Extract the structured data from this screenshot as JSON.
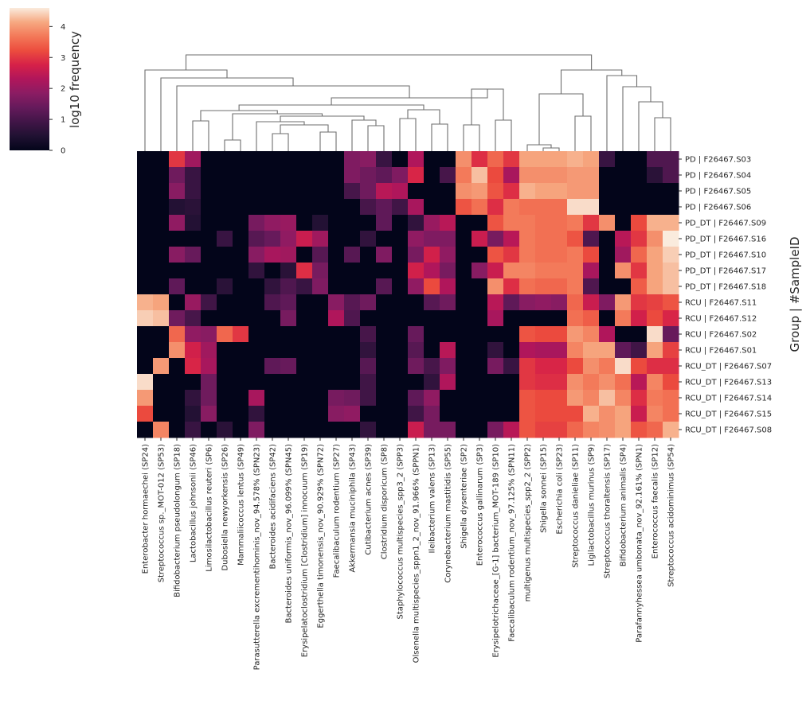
{
  "chart_data": {
    "type": "heatmap",
    "title": "",
    "xlabel": "",
    "ylabel": "Group | #SampleID",
    "colorbar": {
      "label": "log10 frequency",
      "ticks": [
        "0",
        "1",
        "2",
        "3",
        "4"
      ],
      "range": [
        0,
        4.6
      ],
      "colormap": "rocket"
    },
    "dendrogram": "columns (top)",
    "rows": [
      "PD | F26467.S03",
      "PD | F26467.S04",
      "PD | F26467.S05",
      "PD | F26467.S06",
      "PD_DT | F26467.S09",
      "PD_DT | F26467.S16",
      "PD_DT | F26467.S10",
      "PD_DT | F26467.S17",
      "PD_DT | F26467.S18",
      "RCU | F26467.S11",
      "RCU | F26467.S12",
      "RCU | F26467.S02",
      "RCU | F26467.S01",
      "RCU_DT | F26467.S07",
      "RCU_DT | F26467.S13",
      "RCU_DT | F26467.S14",
      "RCU_DT | F26467.S15",
      "RCU_DT | F26467.S08"
    ],
    "columns": [
      "Enterobacter hormaechei (SP24)",
      "Streptococcus sp._MOT-012 (SP53)",
      "Bifidobacterium pseudolongum (SP18)",
      "Lactobacillus johnsonii (SP46)",
      "Limosilactobacillus reuteri (SP6)",
      "Dubosiella newyorkensis (SP26)",
      "Mammaliicoccus lentus (SP49)",
      "Parasutterella excrementihominis_nov_94.578% (SPN23)",
      "Bacteroides acidifaciens (SP42)",
      "Bacteroides uniformis_nov_96.099% (SPN45)",
      "Erysipelatoclostridium [Clostridium] innocuum (SP19)",
      "Eggerthella timonensis_nov_90.929% (SPN72)",
      "Faecalibaculum rodentium (SP27)",
      "Akkermansia muciniphila (SP43)",
      "Cutibacterium acnes (SP39)",
      "Clostridium disporicum (SP8)",
      "Staphylococcus multispecies_spp3_2 (SPP3)",
      "Olsenella multispecies_sppn1_2_nov_91.966% (SPPN1)",
      "Ileibacterium valens (SP13)",
      "Corynebacterium mastitidis (SP55)",
      "Shigella dysenteriae (SP2)",
      "Enterococcus gallinarum (SP3)",
      "Erysipelotrichaceae_[G-1] bacterium_MOT-189 (SP10)",
      "Faecalibaculum rodentium_nov_97.125% (SPN11)",
      "multigenus multispecies_spp2_2 (SPP2)",
      "Shigella sonnei (SP15)",
      "Escherichia coli (SP23)",
      "Streptococcus danieliae (SP11)",
      "Ligilactobacillus murinus (SP9)",
      "Streptococcus thoraltensis (SP17)",
      "Bifidobacterium animalis (SP4)",
      "Parafannyhessea umbonata_nov_92.161% (SPN1)",
      "Enterococcus faecalis (SP12)",
      "Streptococcus acidominimus (SP54)"
    ],
    "values": [
      [
        0,
        0,
        3.0,
        2.1,
        0,
        0,
        0,
        0,
        0,
        0,
        0,
        0,
        0,
        1.7,
        1.8,
        0.8,
        0,
        2.3,
        0,
        0,
        3.9,
        2.9,
        3.5,
        3.0,
        4.1,
        4.1,
        4.1,
        4.2,
        4.1,
        0.8,
        0,
        0,
        1.1,
        1.1
      ],
      [
        0,
        0,
        1.5,
        0.8,
        0,
        0,
        0,
        0,
        0,
        0,
        0,
        0,
        0,
        1.7,
        1.5,
        1.3,
        1.7,
        2.8,
        0,
        1.0,
        3.7,
        4.3,
        3.2,
        2.2,
        3.9,
        3.9,
        3.9,
        4.0,
        4.0,
        0,
        0,
        0,
        0.6,
        1.1
      ],
      [
        0,
        0,
        1.8,
        0.8,
        0,
        0,
        0,
        0,
        0,
        0,
        0,
        0,
        0,
        1.0,
        1.5,
        2.4,
        2.3,
        0,
        0,
        0,
        3.9,
        4.0,
        3.3,
        2.9,
        4.2,
        4.1,
        4.1,
        4.0,
        4.0,
        0,
        0,
        0,
        0,
        0
      ],
      [
        0,
        0,
        0.5,
        0.6,
        0,
        0,
        0,
        0,
        0,
        0,
        0,
        0,
        0,
        0,
        1.0,
        1.3,
        0.9,
        2.2,
        0,
        0,
        3.3,
        3.6,
        2.9,
        3.7,
        3.6,
        3.6,
        3.6,
        4.5,
        4.5,
        0,
        0,
        0,
        0,
        0
      ],
      [
        0,
        0,
        1.9,
        0.5,
        0,
        0,
        0,
        1.6,
        1.9,
        2.0,
        0,
        0.5,
        0,
        0,
        0,
        1.3,
        0,
        0.7,
        2.0,
        2.4,
        0,
        0,
        3.3,
        3.7,
        3.7,
        3.6,
        3.6,
        3.7,
        3.0,
        3.9,
        0,
        3.2,
        4.2,
        4.2
      ],
      [
        0,
        0,
        0,
        0,
        0,
        0.8,
        0,
        1.2,
        1.4,
        1.9,
        2.6,
        2.1,
        0,
        0,
        0.7,
        0,
        0,
        1.9,
        1.7,
        1.7,
        0,
        2.6,
        1.6,
        2.4,
        3.7,
        3.6,
        3.6,
        3.3,
        1.1,
        0,
        2.4,
        3.0,
        3.9,
        4.6
      ],
      [
        0,
        0,
        1.8,
        1.4,
        0,
        0,
        0,
        1.8,
        2.2,
        2.1,
        0,
        1.2,
        0,
        1.2,
        0,
        1.7,
        0,
        1.6,
        2.7,
        1.9,
        0,
        0,
        3.3,
        3.0,
        3.7,
        3.6,
        3.6,
        3.7,
        3.2,
        0,
        2.1,
        3.5,
        4.1,
        4.4
      ],
      [
        0,
        0,
        0,
        0,
        0,
        0,
        0,
        0.7,
        0,
        0.6,
        2.9,
        1.6,
        0,
        0,
        0,
        0,
        0,
        2.7,
        2.3,
        1.6,
        0,
        1.8,
        2.6,
        3.8,
        3.8,
        3.7,
        3.7,
        3.7,
        2.2,
        0,
        3.9,
        3.0,
        4.1,
        4.3
      ],
      [
        0,
        0,
        1.3,
        0,
        0,
        0.6,
        0,
        0,
        0.7,
        1.1,
        0.8,
        1.7,
        0,
        0,
        0,
        1.2,
        0,
        1.9,
        3.2,
        2.3,
        0,
        0,
        3.9,
        2.9,
        3.6,
        3.5,
        3.5,
        3.7,
        1.1,
        0,
        0,
        3.4,
        4.1,
        4.3
      ],
      [
        4.2,
        4.1,
        0,
        2.0,
        0.9,
        0,
        0,
        0,
        1.1,
        1.3,
        0,
        0,
        1.8,
        1.2,
        1.5,
        0,
        0,
        0,
        1.2,
        1.5,
        0,
        0,
        2.4,
        1.3,
        1.8,
        1.9,
        1.8,
        3.5,
        2.6,
        1.7,
        4.0,
        3.0,
        3.1,
        3.3
      ],
      [
        4.4,
        4.3,
        1.5,
        1.0,
        0,
        0,
        0,
        0,
        0,
        1.6,
        0,
        0,
        2.3,
        1.1,
        0,
        0,
        0,
        0,
        0,
        0,
        0,
        0,
        2.2,
        0,
        0,
        0,
        0,
        3.6,
        3.4,
        0,
        3.7,
        2.7,
        3.2,
        2.8
      ],
      [
        0,
        0,
        3.5,
        1.9,
        1.8,
        3.5,
        3.0,
        0,
        0,
        0,
        0,
        0,
        0,
        0,
        1.0,
        0,
        0,
        1.4,
        0,
        0,
        0,
        0,
        0,
        0,
        3.3,
        3.2,
        3.2,
        4.0,
        3.8,
        2.3,
        0,
        0,
        4.5,
        1.4
      ],
      [
        0,
        0,
        3.9,
        2.7,
        2.1,
        0,
        0,
        0,
        0,
        0,
        0,
        0,
        0,
        0,
        0.7,
        0,
        0,
        1.2,
        0,
        2.4,
        0,
        0,
        0.7,
        0,
        2.3,
        2.2,
        2.2,
        3.8,
        4.1,
        4.1,
        1.3,
        0.9,
        4.1,
        3.1
      ],
      [
        0,
        4.0,
        0,
        2.8,
        2.2,
        0,
        0,
        0,
        1.3,
        1.4,
        0,
        0,
        0,
        0,
        1.2,
        0,
        0,
        1.5,
        1.0,
        1.7,
        0,
        0,
        1.6,
        0.8,
        3.0,
        2.8,
        2.8,
        3.2,
        3.9,
        3.7,
        4.5,
        3.2,
        2.9,
        2.9
      ],
      [
        4.5,
        0,
        0,
        0,
        1.5,
        0,
        0,
        0,
        0,
        0,
        0,
        0,
        0,
        0,
        0.9,
        0,
        0,
        0,
        0.7,
        2.3,
        0,
        0,
        0,
        0,
        3.0,
        2.9,
        2.9,
        3.9,
        3.7,
        3.9,
        3.6,
        2.4,
        3.8,
        3.2
      ],
      [
        4.0,
        0,
        0,
        0.7,
        1.5,
        0,
        0,
        2.2,
        0,
        0,
        0,
        0,
        1.6,
        1.5,
        0.9,
        0,
        0,
        1.3,
        1.9,
        0,
        0,
        0,
        0,
        0,
        3.3,
        3.2,
        3.2,
        4.0,
        3.8,
        4.3,
        3.8,
        2.9,
        3.7,
        3.6
      ],
      [
        3.2,
        0,
        0,
        0.5,
        1.8,
        0,
        0,
        0.7,
        0,
        0,
        0,
        0,
        1.8,
        1.9,
        0,
        0,
        0,
        0.9,
        1.6,
        0,
        0,
        0,
        0,
        0,
        3.3,
        3.2,
        3.2,
        3.2,
        4.2,
        3.9,
        4.1,
        2.6,
        3.8,
        3.6
      ],
      [
        0,
        3.8,
        0,
        0.8,
        0,
        0.6,
        0,
        1.7,
        0,
        0,
        0,
        0,
        0,
        0,
        0.7,
        0,
        0,
        2.6,
        1.6,
        1.6,
        0,
        0,
        1.6,
        2.4,
        3.3,
        3.1,
        3.1,
        3.5,
        3.8,
        3.9,
        4.1,
        3.3,
        3.5,
        4.2
      ]
    ]
  }
}
